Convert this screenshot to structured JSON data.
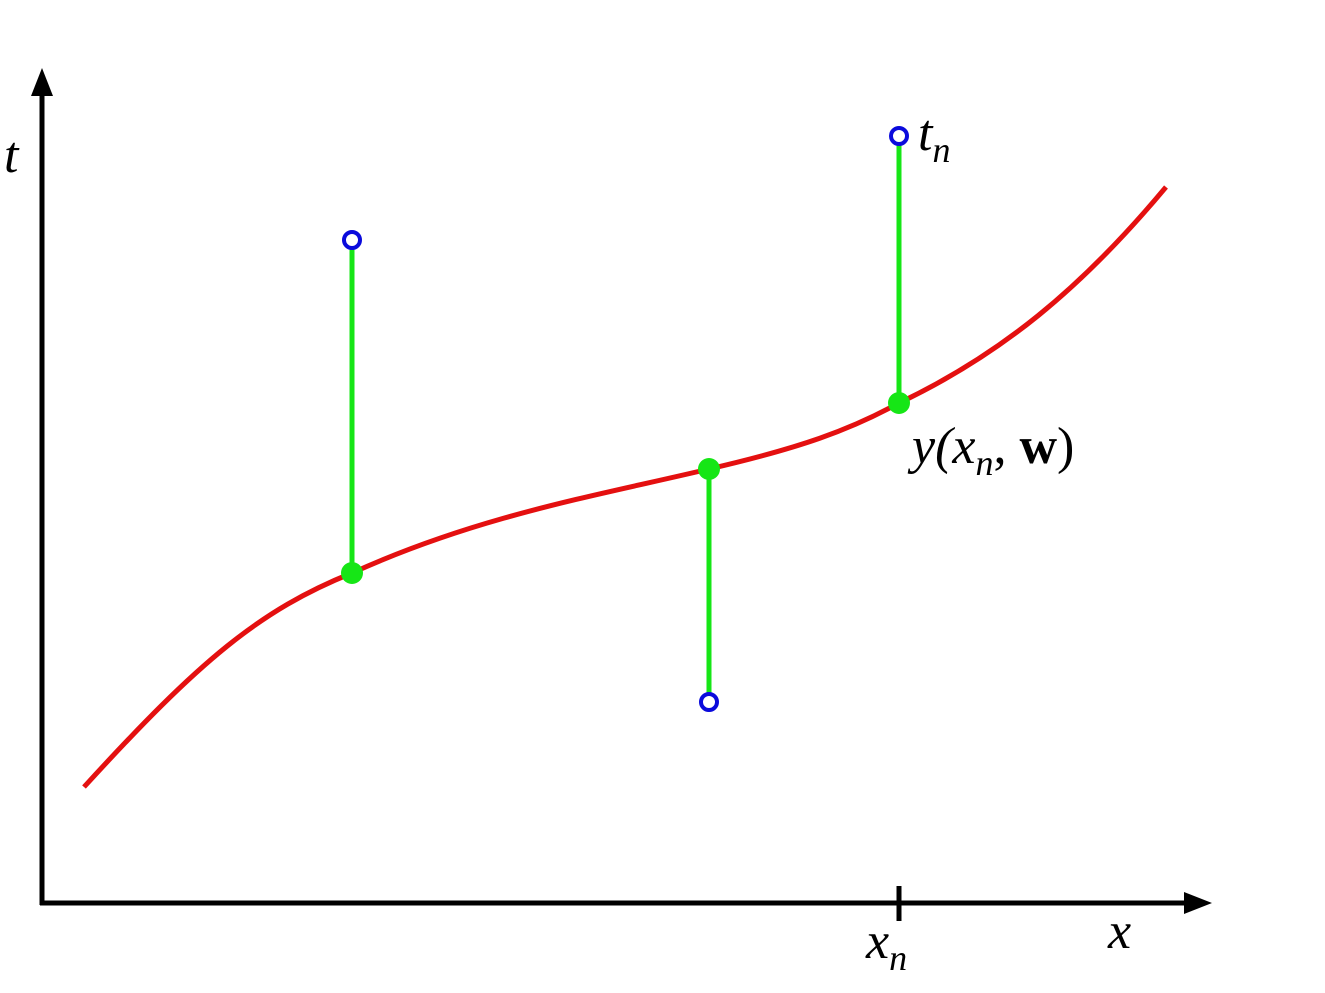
{
  "axes": {
    "y_label": "t",
    "x_label": "x"
  },
  "tick_label": {
    "base": "x",
    "sub": "n"
  },
  "target_label": {
    "base": "t",
    "sub": "n"
  },
  "prediction_label": {
    "parts": [
      "y(x",
      "n",
      ", ",
      "w",
      ")"
    ]
  }
}
